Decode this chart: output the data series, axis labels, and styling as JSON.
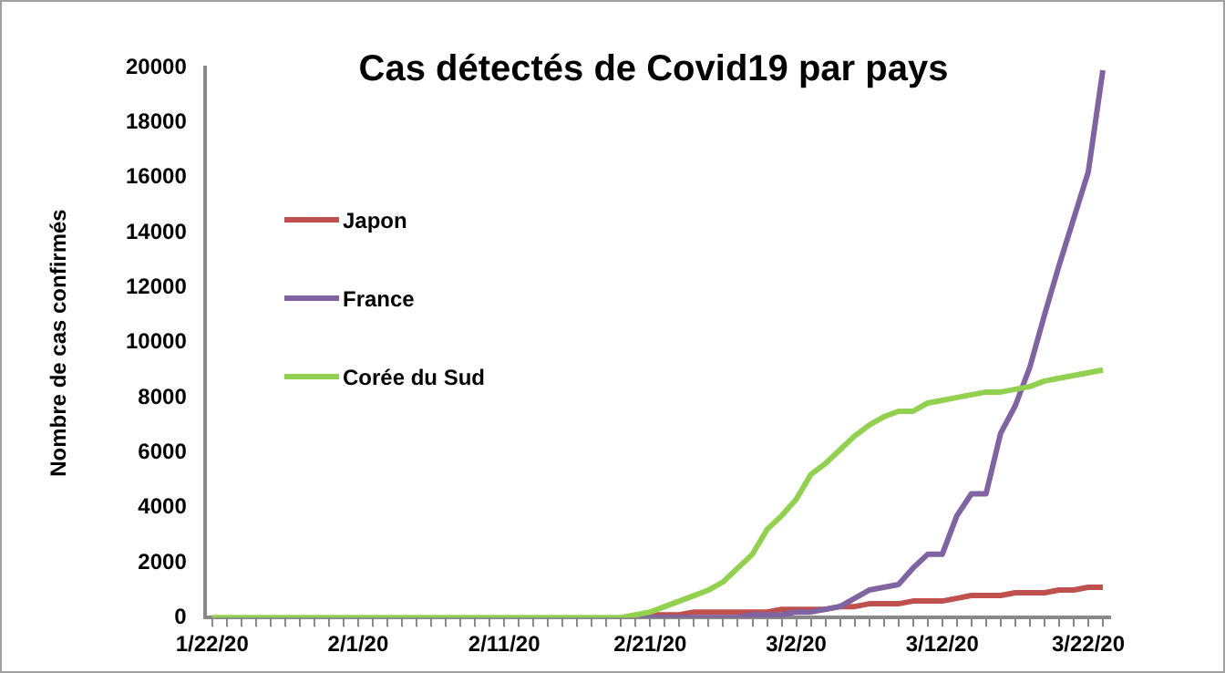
{
  "chart_data": {
    "type": "line",
    "title": "Cas détectés de Covid19 par pays",
    "ylabel": "Nombre de cas confirmés",
    "categories": [
      "1/22/20",
      null,
      null,
      null,
      null,
      null,
      null,
      null,
      null,
      null,
      "2/1/20",
      null,
      null,
      null,
      null,
      null,
      null,
      null,
      null,
      null,
      "2/11/20",
      null,
      null,
      null,
      null,
      null,
      null,
      null,
      null,
      null,
      "2/21/20",
      null,
      null,
      null,
      null,
      null,
      null,
      null,
      null,
      null,
      "3/2/20",
      null,
      null,
      null,
      null,
      null,
      null,
      null,
      null,
      null,
      "3/12/20",
      null,
      null,
      null,
      null,
      null,
      null,
      null,
      null,
      null,
      "3/22/20",
      null
    ],
    "series": [
      {
        "name": "Japon",
        "color": "#c0504d",
        "values": [
          null,
          null,
          null,
          null,
          null,
          null,
          null,
          null,
          null,
          null,
          null,
          null,
          null,
          null,
          null,
          null,
          null,
          null,
          null,
          null,
          null,
          null,
          null,
          null,
          null,
          null,
          null,
          null,
          null,
          100,
          100,
          100,
          100,
          200,
          200,
          200,
          200,
          200,
          200,
          300,
          300,
          300,
          300,
          400,
          400,
          500,
          500,
          500,
          600,
          600,
          600,
          700,
          800,
          800,
          800,
          900,
          900,
          900,
          1000,
          1000,
          1100,
          1100
        ]
      },
      {
        "name": "France",
        "color": "#8064a2",
        "values": [
          null,
          null,
          null,
          null,
          null,
          null,
          null,
          null,
          null,
          null,
          null,
          null,
          null,
          null,
          null,
          null,
          null,
          null,
          null,
          null,
          null,
          null,
          null,
          null,
          null,
          null,
          null,
          null,
          null,
          0,
          0,
          0,
          0,
          0,
          0,
          0,
          0,
          100,
          100,
          100,
          200,
          200,
          300,
          400,
          700,
          1000,
          1100,
          1200,
          1800,
          2300,
          2300,
          3700,
          4500,
          4500,
          6700,
          7700,
          9100,
          11000,
          12800,
          14500,
          16200,
          19900
        ]
      },
      {
        "name": "Corée du Sud",
        "color": "#92d050",
        "values": [
          0,
          0,
          0,
          0,
          0,
          0,
          0,
          0,
          0,
          0,
          0,
          0,
          0,
          0,
          0,
          0,
          0,
          0,
          0,
          0,
          0,
          0,
          0,
          0,
          0,
          0,
          0,
          0,
          0,
          100,
          200,
          400,
          600,
          800,
          1000,
          1300,
          1800,
          2300,
          3200,
          3700,
          4300,
          5200,
          5600,
          6100,
          6600,
          7000,
          7300,
          7500,
          7500,
          7800,
          7900,
          8000,
          8100,
          8200,
          8200,
          8300,
          8400,
          8600,
          8700,
          8800,
          8900,
          9000
        ]
      }
    ],
    "ylim": [
      0,
      20000
    ],
    "yticks": [
      0,
      2000,
      4000,
      6000,
      8000,
      10000,
      12000,
      14000,
      16000,
      18000,
      20000
    ],
    "grid": false,
    "legend": "top left",
    "marker": "none",
    "line_style": "solid"
  }
}
